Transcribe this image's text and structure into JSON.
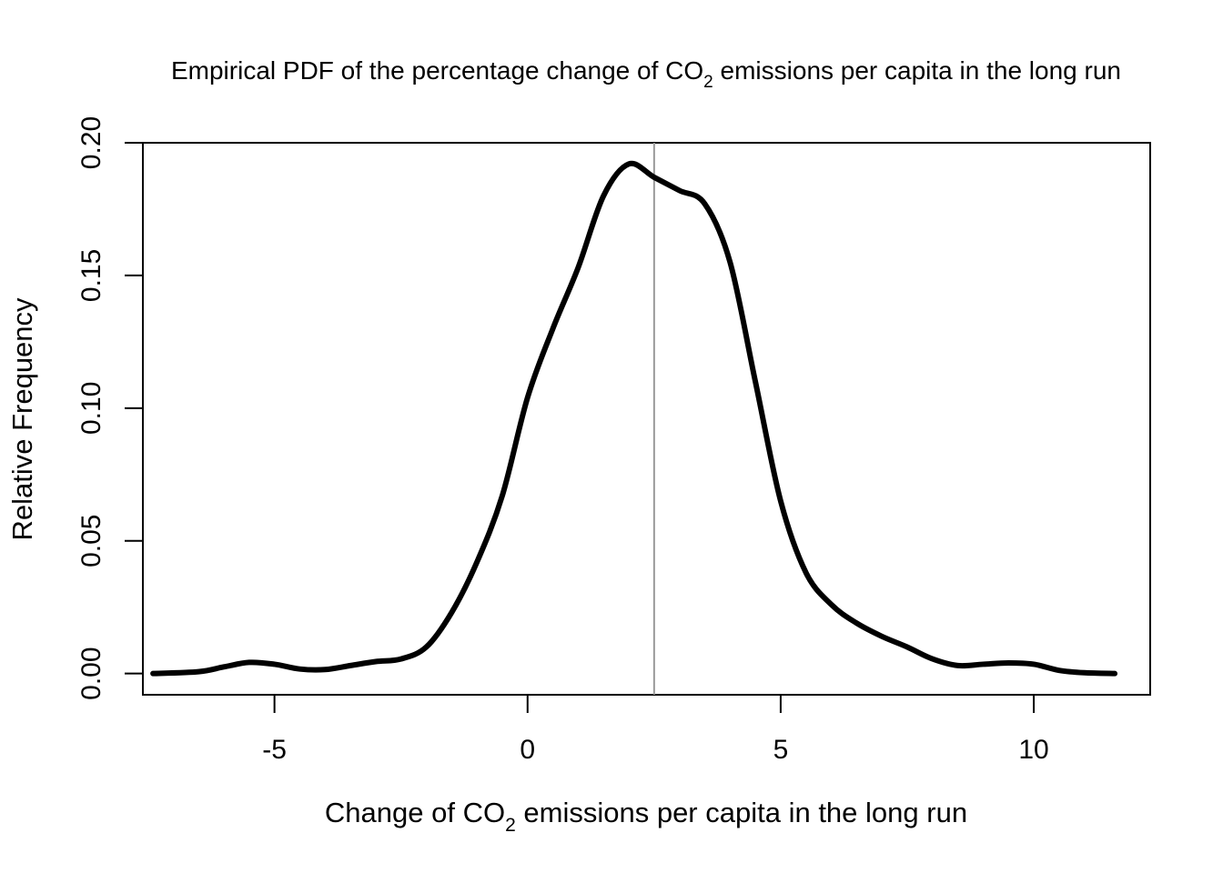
{
  "chart_data": {
    "type": "line",
    "title_parts": [
      "Empirical PDF of the percentage change of CO",
      "2",
      " emissions per capita in the long run"
    ],
    "xlabel_parts": [
      "Change of CO",
      "2",
      " emissions per capita in the long run"
    ],
    "ylabel": "Relative Frequency",
    "xlim": [
      -7.6,
      12.3
    ],
    "ylim": [
      -0.008,
      0.2
    ],
    "x_ticks": [
      -5,
      0,
      5,
      10
    ],
    "x_tick_labels": [
      "-5",
      "0",
      "5",
      "10"
    ],
    "y_ticks": [
      0.0,
      0.05,
      0.1,
      0.15,
      0.2
    ],
    "y_tick_labels": [
      "0.00",
      "0.05",
      "0.10",
      "0.15",
      "0.20"
    ],
    "grid": false,
    "legend": "none",
    "vline_x": 2.5,
    "series": [
      {
        "x": [
          -7.4,
          -6.5,
          -6.0,
          -5.5,
          -5.0,
          -4.5,
          -4.0,
          -3.5,
          -3.0,
          -2.5,
          -2.0,
          -1.5,
          -1.0,
          -0.5,
          0.0,
          0.5,
          1.0,
          1.5,
          2.0,
          2.5,
          3.0,
          3.5,
          4.0,
          4.5,
          5.0,
          5.5,
          6.0,
          6.5,
          7.0,
          7.5,
          8.0,
          8.5,
          9.0,
          9.5,
          10.0,
          10.5,
          11.0,
          11.6
        ],
        "values": [
          0.0,
          0.0007,
          0.0025,
          0.0042,
          0.0035,
          0.0017,
          0.0015,
          0.003,
          0.0045,
          0.0055,
          0.01,
          0.023,
          0.042,
          0.067,
          0.104,
          0.13,
          0.153,
          0.18,
          0.192,
          0.187,
          0.182,
          0.177,
          0.155,
          0.11,
          0.065,
          0.038,
          0.026,
          0.019,
          0.014,
          0.01,
          0.0055,
          0.003,
          0.0035,
          0.004,
          0.0035,
          0.0012,
          0.0003,
          0.0
        ]
      }
    ],
    "colors": {
      "line": "#000000",
      "vline": "#999999",
      "frame": "#000000"
    }
  }
}
